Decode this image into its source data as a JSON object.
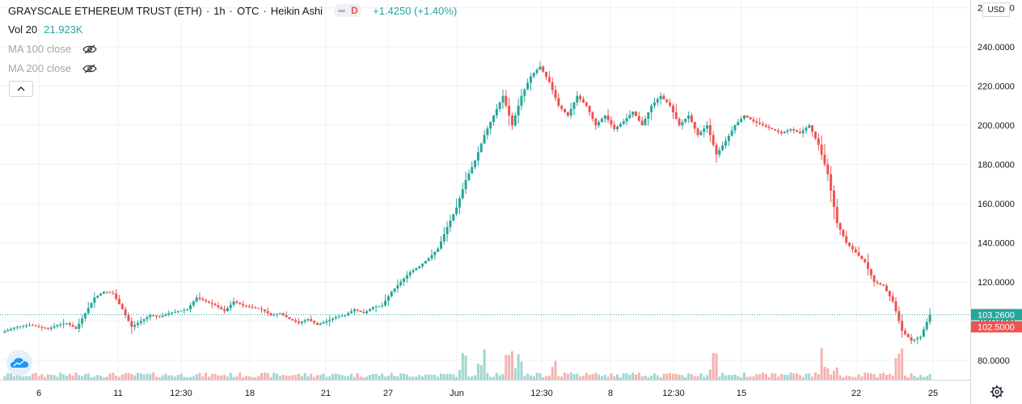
{
  "header": {
    "title": "GRAYSCALE ETHEREUM TRUST (ETH)",
    "sep": "·",
    "interval": "1h",
    "exchange": "OTC",
    "chart_style": "Heikin Ashi",
    "interval_badge": "D",
    "change": "+1.4250 (+1.40%)"
  },
  "volume": {
    "label": "Vol 20",
    "value": "21.923K"
  },
  "indicators": [
    {
      "label": "MA 100 close",
      "icon": "eye-hidden-icon"
    },
    {
      "label": "MA 200 close",
      "icon": "eye-hidden-icon"
    }
  ],
  "currency": "USD",
  "colors": {
    "up": "#26a69a",
    "down": "#ef5350",
    "up_volume": "#9fd7d1",
    "down_volume": "#f5b2b0",
    "grid": "#eef0f3",
    "last_price_line": "#26a69a"
  },
  "chart_data": {
    "type": "candlestick",
    "x_ticks": [
      "6",
      "11",
      "12:30",
      "18",
      "21",
      "27",
      "Jun",
      "12:30",
      "8",
      "12:30",
      "15",
      "22",
      "25"
    ],
    "y_ticks": [
      "80.0000",
      "100.0000",
      "120.0000",
      "140.0000",
      "160.0000",
      "180.0000",
      "200.0000",
      "220.0000",
      "240.0000",
      "260.0000"
    ],
    "ylim": [
      70,
      264
    ],
    "last_price": {
      "value": 103.26,
      "label": "103.2600"
    },
    "current_candle_price": {
      "value": 102.5,
      "label": "102.5000"
    },
    "series": [
      {
        "name": "price",
        "points": [
          [
            0,
            94
          ],
          [
            3,
            97
          ],
          [
            6,
            98
          ],
          [
            8,
            97
          ],
          [
            10,
            96
          ],
          [
            12,
            98
          ],
          [
            14,
            99
          ],
          [
            16,
            96
          ],
          [
            18,
            104
          ],
          [
            20,
            112
          ],
          [
            22,
            115
          ],
          [
            24,
            114
          ],
          [
            26,
            106
          ],
          [
            28,
            97
          ],
          [
            30,
            100
          ],
          [
            32,
            103
          ],
          [
            34,
            102
          ],
          [
            36,
            104
          ],
          [
            38,
            105
          ],
          [
            40,
            106
          ],
          [
            42,
            112
          ],
          [
            44,
            110
          ],
          [
            46,
            108
          ],
          [
            48,
            105
          ],
          [
            50,
            110
          ],
          [
            52,
            108
          ],
          [
            54,
            107
          ],
          [
            56,
            106
          ],
          [
            58,
            103
          ],
          [
            60,
            104
          ],
          [
            62,
            101
          ],
          [
            64,
            99
          ],
          [
            66,
            101
          ],
          [
            68,
            98
          ],
          [
            70,
            100
          ],
          [
            72,
            102
          ],
          [
            74,
            103
          ],
          [
            76,
            106
          ],
          [
            78,
            104
          ],
          [
            80,
            107
          ],
          [
            82,
            108
          ],
          [
            84,
            115
          ],
          [
            86,
            120
          ],
          [
            88,
            125
          ],
          [
            90,
            128
          ],
          [
            92,
            132
          ],
          [
            94,
            137
          ],
          [
            96,
            148
          ],
          [
            98,
            158
          ],
          [
            100,
            172
          ],
          [
            102,
            182
          ],
          [
            104,
            195
          ],
          [
            106,
            205
          ],
          [
            108,
            215
          ],
          [
            110,
            200
          ],
          [
            112,
            215
          ],
          [
            114,
            225
          ],
          [
            116,
            230
          ],
          [
            118,
            222
          ],
          [
            120,
            210
          ],
          [
            122,
            205
          ],
          [
            124,
            215
          ],
          [
            126,
            210
          ],
          [
            128,
            200
          ],
          [
            130,
            205
          ],
          [
            132,
            198
          ],
          [
            134,
            202
          ],
          [
            136,
            207
          ],
          [
            138,
            200
          ],
          [
            140,
            210
          ],
          [
            142,
            215
          ],
          [
            144,
            210
          ],
          [
            146,
            200
          ],
          [
            148,
            205
          ],
          [
            150,
            195
          ],
          [
            152,
            200
          ],
          [
            154,
            185
          ],
          [
            156,
            192
          ],
          [
            158,
            200
          ],
          [
            160,
            205
          ],
          [
            162,
            202
          ],
          [
            164,
            200
          ],
          [
            166,
            198
          ],
          [
            168,
            196
          ],
          [
            170,
            198
          ],
          [
            172,
            196
          ],
          [
            174,
            200
          ],
          [
            176,
            190
          ],
          [
            178,
            175
          ],
          [
            180,
            150
          ],
          [
            182,
            140
          ],
          [
            184,
            135
          ],
          [
            186,
            130
          ],
          [
            188,
            120
          ],
          [
            190,
            118
          ],
          [
            192,
            110
          ],
          [
            194,
            95
          ],
          [
            196,
            90
          ],
          [
            198,
            92
          ],
          [
            200,
            103.26
          ]
        ]
      }
    ]
  }
}
